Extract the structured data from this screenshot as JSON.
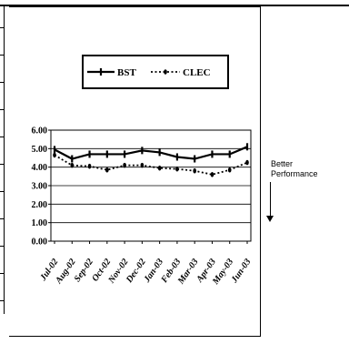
{
  "annotation": {
    "line1": "Better",
    "line2": "Performance"
  },
  "chart_data": {
    "type": "line",
    "title": "",
    "xlabel": "",
    "ylabel": "",
    "categories": [
      "Jul-02",
      "Aug-02",
      "Sep-02",
      "Oct-02",
      "Nov-02",
      "Dec-02",
      "Jan-03",
      "Feb-03",
      "Mar-03",
      "Apr-03",
      "May-03",
      "Jun-03"
    ],
    "ylim": [
      0,
      6
    ],
    "yticks": [
      "0.00",
      "1.00",
      "2.00",
      "3.00",
      "4.00",
      "5.00",
      "6.00"
    ],
    "grid": true,
    "legend_position": "top",
    "series": [
      {
        "name": "BST",
        "style": "solid",
        "color": "#000000",
        "values": [
          4.95,
          4.45,
          4.7,
          4.7,
          4.7,
          4.9,
          4.8,
          4.55,
          4.45,
          4.7,
          4.7,
          5.1
        ]
      },
      {
        "name": "CLEC",
        "style": "dotted",
        "color": "#000000",
        "values": [
          4.65,
          4.1,
          4.05,
          3.85,
          4.1,
          4.1,
          3.95,
          3.9,
          3.8,
          3.6,
          3.85,
          4.25
        ]
      }
    ]
  }
}
